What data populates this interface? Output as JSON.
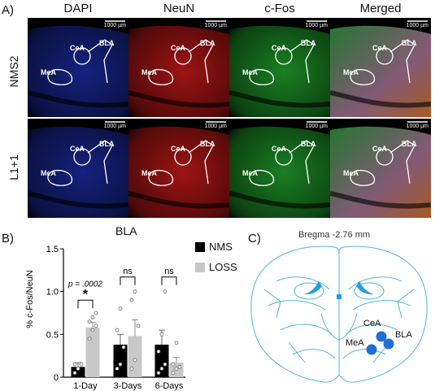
{
  "panel_labels": {
    "a": "A)",
    "b": "B)",
    "c": "C)"
  },
  "micrographs": {
    "columns": [
      "DAPI",
      "NeuN",
      "c-Fos",
      "Merged"
    ],
    "rows": [
      "NMS2",
      "L1+1"
    ],
    "scale_bar": "1000 µm",
    "regions": {
      "cea": "CeA",
      "bla": "BLA",
      "mea": "MeA"
    },
    "tile_colors": {
      "dapi": "#1a2a9e",
      "neun": "#c41818",
      "cfos": "#1f9e2a",
      "merged": "#7a5a40"
    }
  },
  "chart_data": {
    "type": "bar",
    "title": "BLA",
    "ylabel": "% c-Fos/NeuN",
    "xlabel": "",
    "ylim": [
      0,
      1.5
    ],
    "yticks": [
      "0",
      "0.5",
      "1.0",
      "1.5"
    ],
    "categories": [
      "1-Day",
      "3-Days",
      "6-Days"
    ],
    "series": [
      {
        "name": "NMS",
        "color": "#000000",
        "values": [
          0.12,
          0.38,
          0.38
        ],
        "errors": [
          0.05,
          0.12,
          0.17
        ],
        "points": [
          [
            0.05,
            0.1,
            0.15,
            0.15,
            0.1
          ],
          [
            0.1,
            0.15,
            0.35,
            0.55,
            0.8
          ],
          [
            0.05,
            0.1,
            0.15,
            0.3,
            0.5,
            1.0
          ]
        ]
      },
      {
        "name": "LOSS",
        "color": "#c8c8c8",
        "values": [
          0.58,
          0.48,
          0.17
        ],
        "errors": [
          0.06,
          0.19,
          0.06
        ],
        "points": [
          [
            0.45,
            0.55,
            0.6,
            0.65,
            0.7,
            0.75
          ],
          [
            0.1,
            0.2,
            0.6,
            0.9,
            1.0
          ],
          [
            0.05,
            0.1,
            0.12,
            0.15,
            0.4
          ]
        ]
      }
    ],
    "annotations": {
      "p_value": "p = .0002",
      "star": "*",
      "ns_1": "ns",
      "ns_2": "ns"
    },
    "legend_position": "top-right"
  },
  "atlas": {
    "label": "Bregma -2.76 mm",
    "regions": {
      "cea": "CeA",
      "bla": "BLA",
      "mea": "MeA"
    },
    "line_color": "#4fb3e0",
    "dot_color": "#1f6fd6"
  }
}
